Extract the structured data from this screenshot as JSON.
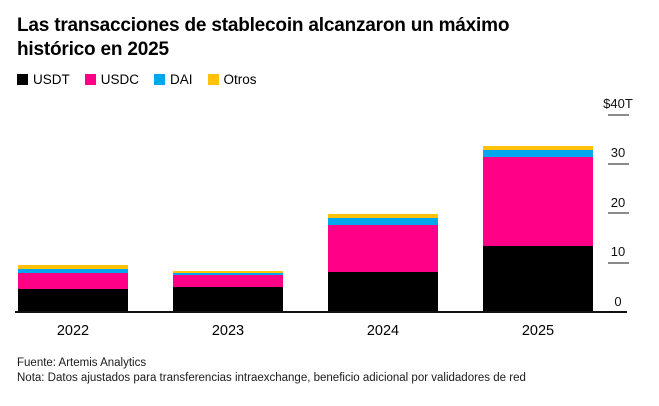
{
  "title": "Las transacciones de stablecoin alcanzaron un máximo histórico en 2025",
  "legend": [
    {
      "label": "USDT",
      "color": "#000000"
    },
    {
      "label": "USDC",
      "color": "#ff0087"
    },
    {
      "label": "DAI",
      "color": "#00a7ec"
    },
    {
      "label": "Otros",
      "color": "#ffc10a"
    }
  ],
  "chart_data": {
    "type": "bar",
    "stacked": true,
    "title": "Las transacciones de stablecoin alcanzaron un máximo histórico en 2025",
    "unit": "trillones de USD",
    "categories": [
      "2022",
      "2023",
      "2024",
      "2025"
    ],
    "series": [
      {
        "name": "USDT",
        "color": "#000000",
        "values": [
          4.4,
          4.9,
          7.9,
          13.2
        ]
      },
      {
        "name": "USDC",
        "color": "#ff0087",
        "values": [
          3.2,
          2.4,
          9.6,
          18.1
        ]
      },
      {
        "name": "DAI",
        "color": "#00a7ec",
        "values": [
          1.0,
          0.4,
          1.3,
          1.3
        ]
      },
      {
        "name": "Otros",
        "color": "#ffc10a",
        "values": [
          0.8,
          0.4,
          0.8,
          0.8
        ]
      }
    ],
    "totals": [
      9.4,
      8.1,
      19.6,
      33.4
    ],
    "y_axis": {
      "side": "right",
      "min": 0,
      "max": 40,
      "ticks": [
        {
          "label": "$40T",
          "value": 40
        },
        {
          "label": "30",
          "value": 30
        },
        {
          "label": "20",
          "value": 20
        },
        {
          "label": "10",
          "value": 10
        },
        {
          "label": "0",
          "value": 0
        }
      ]
    },
    "gridlines": false,
    "legend_position": "top-left"
  },
  "footer": {
    "source": "Fuente: Artemis Analytics",
    "note": "Nota: Datos ajustados para transferencias intraexchange, beneficio adicional por validadores de red"
  }
}
